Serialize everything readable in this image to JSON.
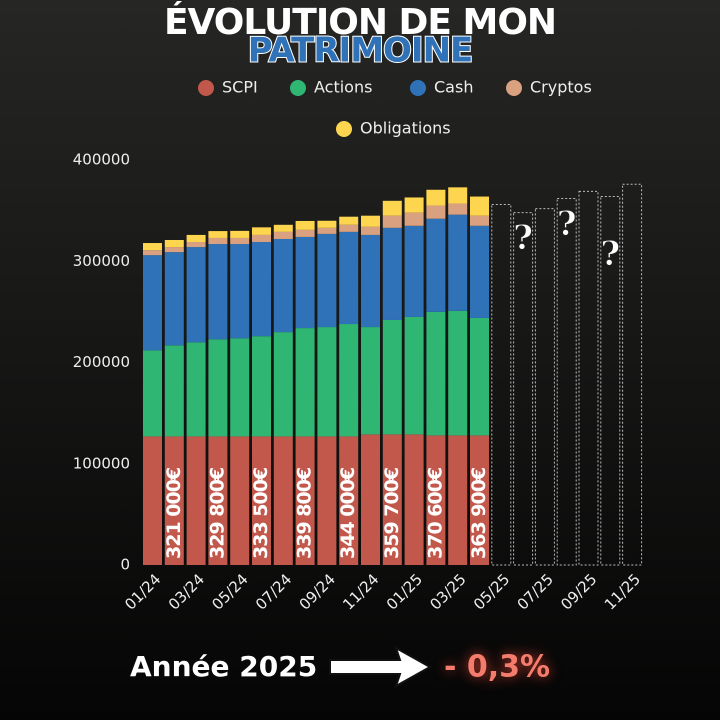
{
  "chart_data": {
    "type": "stacked_bar",
    "title": "ÉVOLUTION DE MON",
    "subtitle": "PATRIMOINE",
    "categories": [
      "01/24",
      null,
      "03/24",
      null,
      "05/24",
      null,
      "07/24",
      null,
      "09/24",
      null,
      "11/24",
      null,
      "01/25",
      null,
      "03/25",
      null,
      "05/25",
      null,
      "07/25",
      null,
      "09/25",
      null,
      "11/25"
    ],
    "series": [
      {
        "name": "SCPI",
        "color": "#c1584b",
        "values": [
          127000,
          127000,
          127000,
          127000,
          127000,
          127000,
          127000,
          127000,
          127000,
          127000,
          129000,
          129000,
          129000,
          128000,
          128000,
          128000,
          null,
          null,
          null,
          null,
          null,
          null,
          null
        ]
      },
      {
        "name": "Actions",
        "color": "#2fb673",
        "values": [
          85000,
          90000,
          93000,
          96000,
          97000,
          99000,
          103000,
          107000,
          108000,
          111000,
          106000,
          113000,
          116000,
          122000,
          123000,
          116000,
          null,
          null,
          null,
          null,
          null,
          null,
          null
        ]
      },
      {
        "name": "Cash",
        "color": "#2f72b7",
        "values": [
          94000,
          92000,
          94000,
          94000,
          93000,
          93000,
          92000,
          90000,
          92000,
          91000,
          91000,
          91000,
          90000,
          92000,
          95000,
          91000,
          null,
          null,
          null,
          null,
          null,
          null,
          null
        ]
      },
      {
        "name": "Cryptos",
        "color": "#d9a17f",
        "values": [
          5000,
          5000,
          5000,
          6000,
          6000,
          7000,
          7000,
          7000,
          6000,
          7000,
          8000,
          12000,
          13000,
          13000,
          11000,
          10000,
          null,
          null,
          null,
          null,
          null,
          null,
          null
        ]
      },
      {
        "name": "Obligations",
        "color": "#fdd54f",
        "values": [
          7000,
          7000,
          7000,
          6800,
          7000,
          7500,
          7000,
          8800,
          7000,
          8000,
          11000,
          14700,
          15000,
          15600,
          16000,
          18900,
          null,
          null,
          null,
          null,
          null,
          null,
          null
        ]
      }
    ],
    "totals": [
      null,
      321000,
      null,
      329800,
      null,
      333500,
      null,
      339800,
      null,
      344000,
      null,
      359700,
      null,
      370600,
      null,
      363900,
      null,
      null,
      null,
      null,
      null,
      null,
      null
    ],
    "total_labels": [
      null,
      "321 000€",
      null,
      "329 800€",
      null,
      "333 500€",
      null,
      "339 800€",
      null,
      "344 000€",
      null,
      "359 700€",
      null,
      "370 600€",
      null,
      "363 900€",
      null,
      null,
      null,
      null,
      null,
      null,
      null
    ],
    "projection": [
      null,
      null,
      null,
      null,
      null,
      null,
      null,
      null,
      null,
      null,
      null,
      null,
      null,
      null,
      null,
      null,
      356000,
      348000,
      352000,
      362000,
      369000,
      364000,
      376000
    ],
    "annotations": [
      "?",
      "?",
      "?"
    ],
    "ylim": [
      0,
      400000
    ],
    "yticks": [
      0,
      100000,
      200000,
      300000,
      400000
    ],
    "summary_label": "Année 2025",
    "summary_value": "- 0,3%"
  }
}
